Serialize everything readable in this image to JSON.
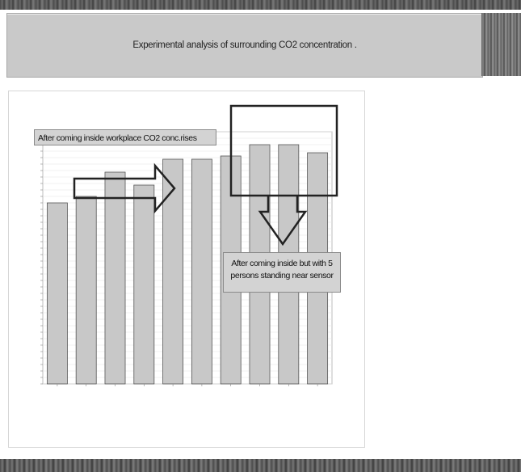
{
  "banner": {
    "title": "Experimental analysis of  surrounding CO2 concentration ."
  },
  "annotations": {
    "first": "After coming inside  workplace CO2  conc.rises",
    "second_line1": "After coming inside but with 5",
    "second_line2": "persons  standing near sensor"
  },
  "colors": {
    "bar_fill": "#c8c8c8",
    "bar_stroke": "#555555",
    "banner_bg": "#c9c9c9",
    "annotation_bg": "#d3d3d3"
  },
  "chart_data": {
    "type": "bar",
    "title": "",
    "xlabel": "",
    "ylabel": "",
    "values": [
      560,
      580,
      655,
      615,
      695,
      695,
      705,
      740,
      740,
      715
    ],
    "ylim": [
      0,
      780
    ],
    "grid": true,
    "legend": "none"
  }
}
